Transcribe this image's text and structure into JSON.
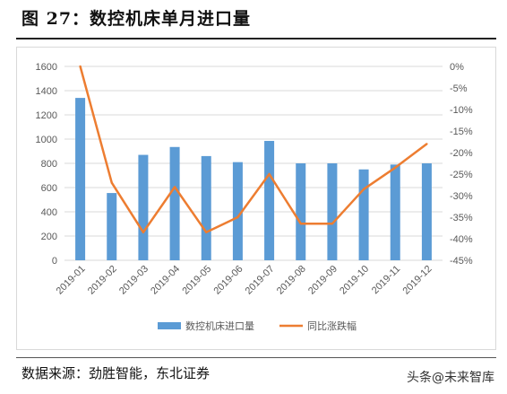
{
  "figure": {
    "title": "图  27：数控机床单月进口量",
    "source": "数据来源：劲胜智能，东北证券",
    "watermark": "头条@未来智库"
  },
  "colors": {
    "bar": "#5b9bd5",
    "line": "#ed7d31",
    "grid": "#d9d9d9"
  },
  "chart_data": {
    "type": "bar",
    "categories": [
      "2019-01",
      "2019-02",
      "2019-03",
      "2019-04",
      "2019-05",
      "2019-06",
      "2019-07",
      "2019-08",
      "2019-09",
      "2019-10",
      "2019-11",
      "2019-12"
    ],
    "series": [
      {
        "name": "数控机床进口量",
        "type": "bar",
        "axis": "left",
        "values": [
          1340,
          555,
          870,
          935,
          860,
          810,
          985,
          800,
          800,
          750,
          790,
          800
        ]
      },
      {
        "name": "同比涨跌幅",
        "type": "line",
        "axis": "right",
        "values": [
          0,
          -27,
          -38.5,
          -28,
          -38.5,
          -35,
          -25,
          -36.5,
          -36.5,
          -28.5,
          -23.5,
          -18
        ]
      }
    ],
    "ylim_left": [
      0,
      1600
    ],
    "yticks_left": [
      0,
      200,
      400,
      600,
      800,
      1000,
      1200,
      1400,
      1600
    ],
    "ylim_right": [
      -45,
      0
    ],
    "yticks_right": [
      "0%",
      "-5%",
      "-10%",
      "-15%",
      "-20%",
      "-25%",
      "-30%",
      "-35%",
      "-40%",
      "-45%"
    ],
    "grid": true,
    "legend": "bottom"
  }
}
